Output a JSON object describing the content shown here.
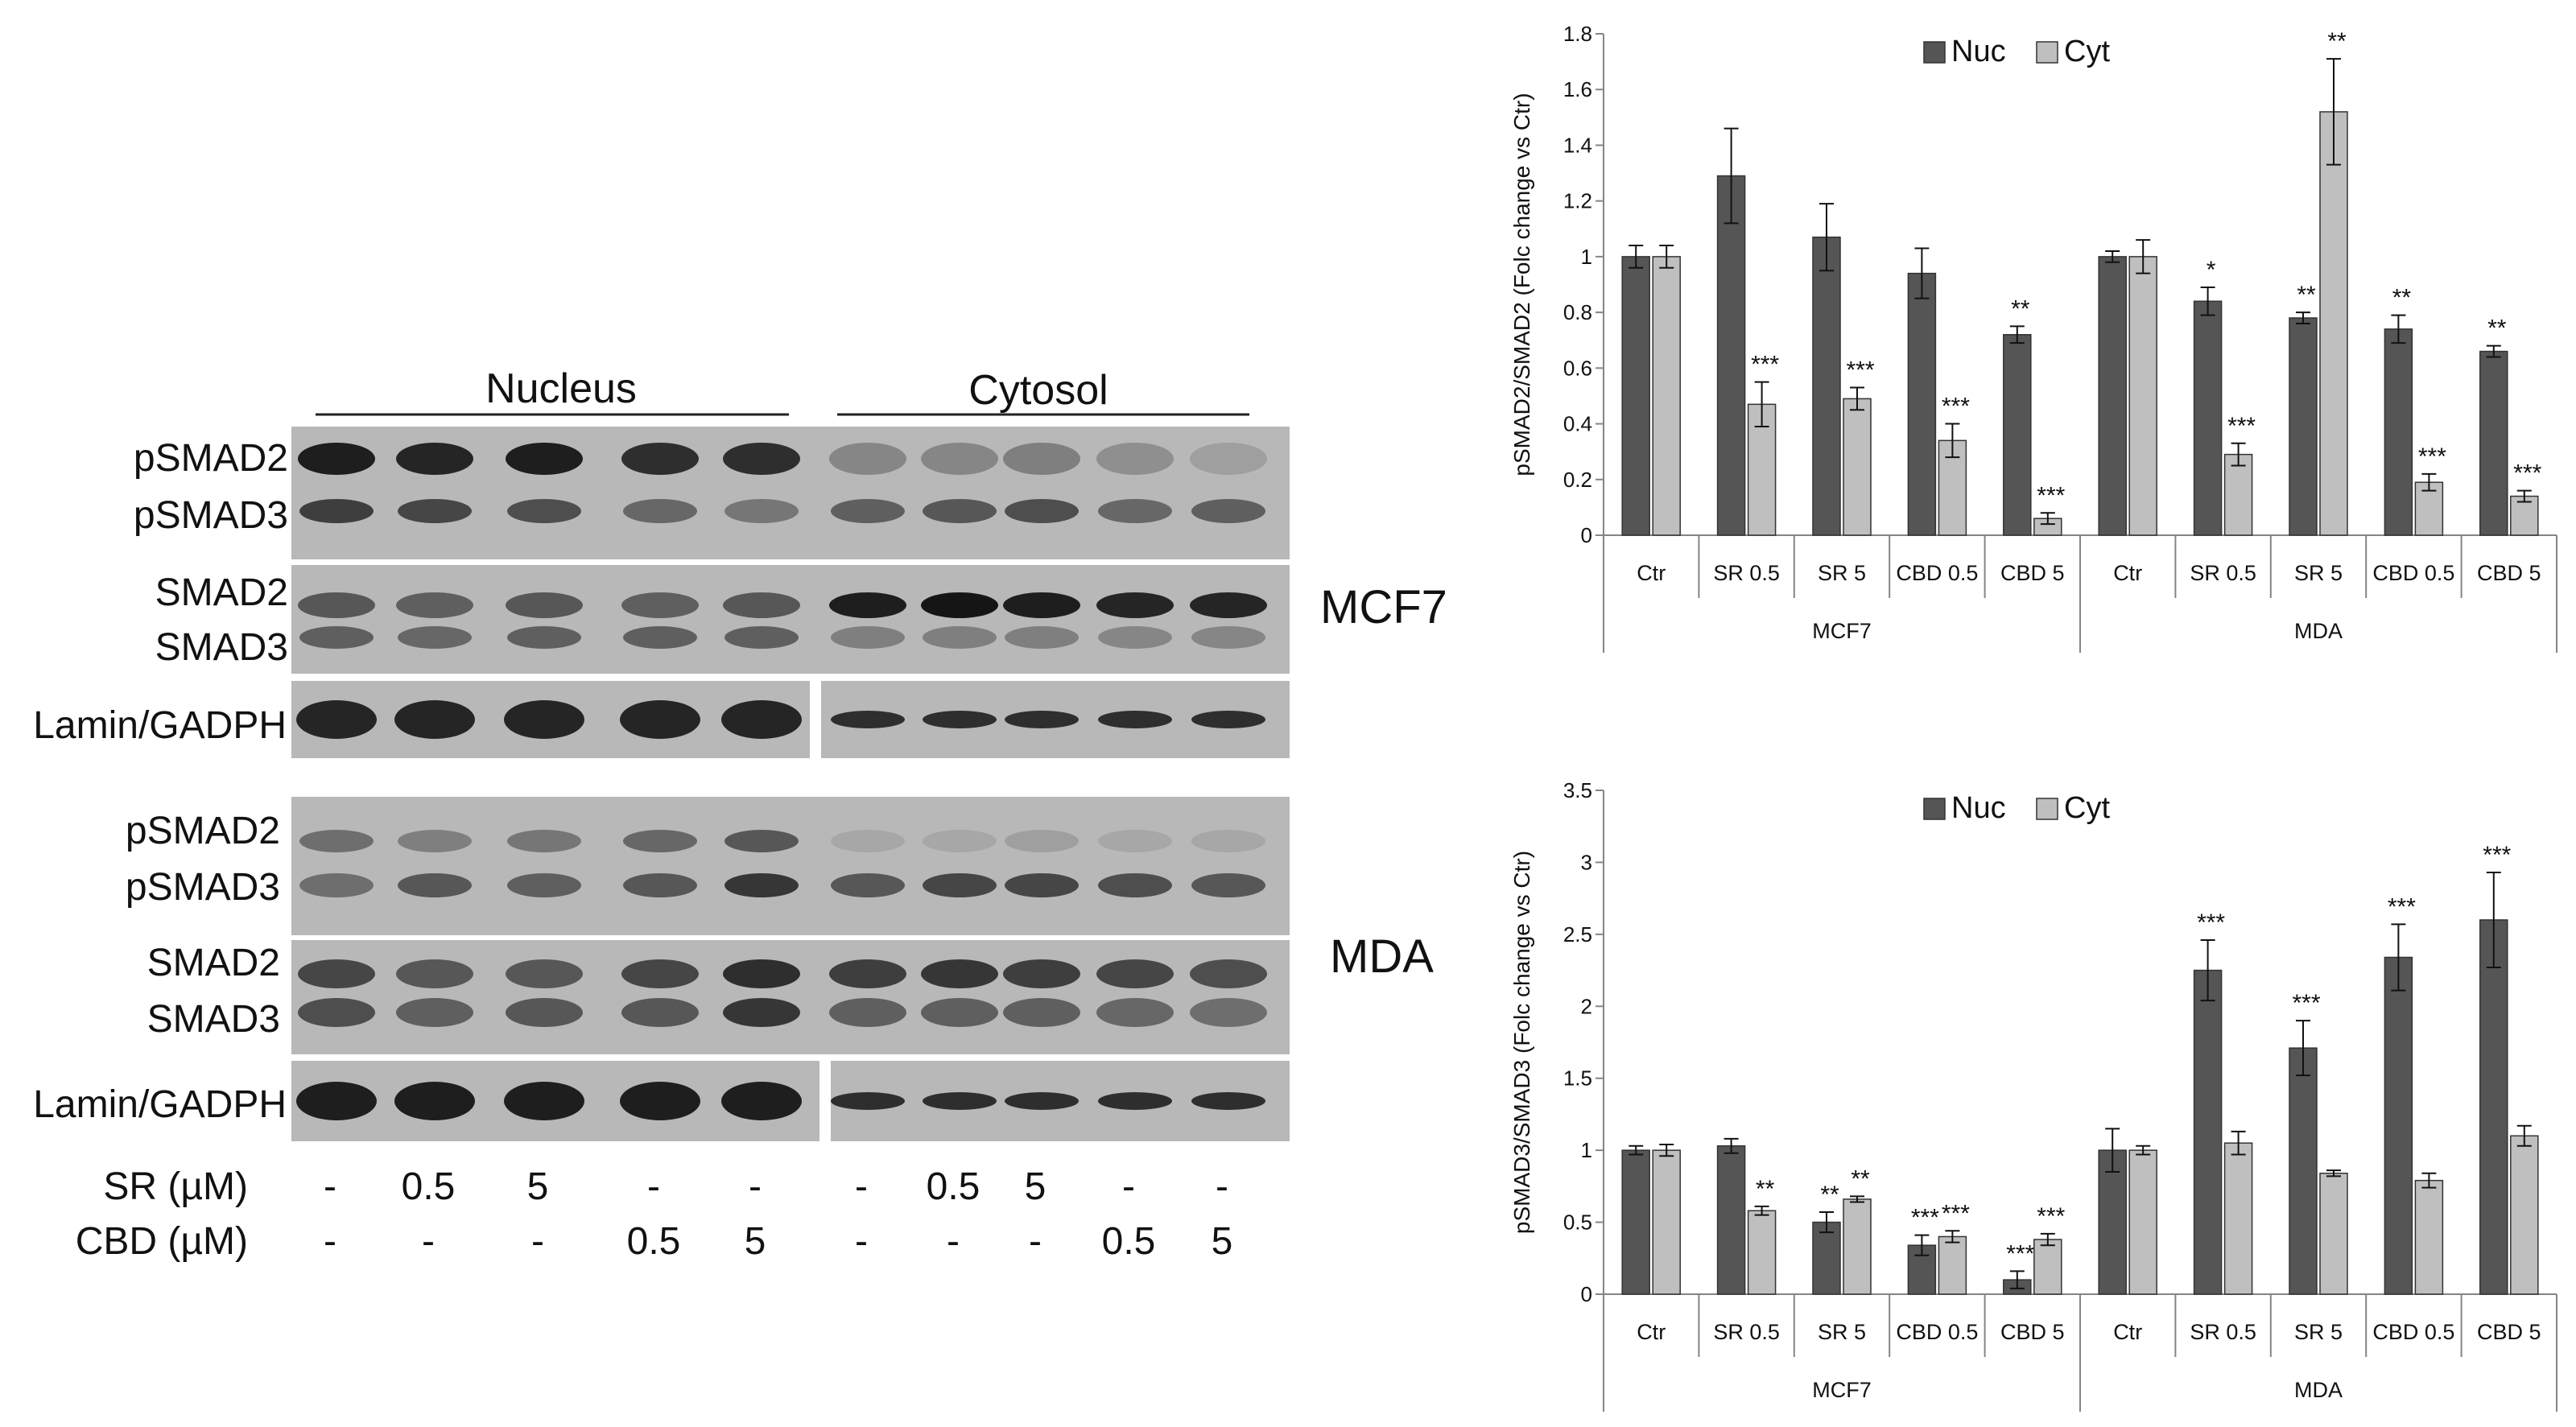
{
  "colors": {
    "nuc": "#555555",
    "cyt": "#bfbfbf",
    "axis": "#858585",
    "text": "#111111",
    "blot_bg": "#b8b8b8",
    "blot_band": "#151515"
  },
  "blot": {
    "nucleus_header": "Nucleus",
    "cytosol_header": "Cytosol",
    "cell_lines": [
      "MCF7",
      "MDA"
    ],
    "labels": {
      "psmad2": "pSMAD2",
      "psmad3": "pSMAD3",
      "smad2": "SMAD2",
      "smad3": "SMAD3",
      "loading": "Lamin/GADPH"
    },
    "treatment_rows": [
      {
        "label": "SR (µM)",
        "values": [
          "-",
          "0.5",
          "5",
          "-",
          "-",
          "-",
          "0.5",
          "5",
          "-",
          "-"
        ]
      },
      {
        "label": "CBD (µM)",
        "values": [
          "-",
          "-",
          "-",
          "0.5",
          "5",
          "-",
          "-",
          "-",
          "0.5",
          "5"
        ]
      }
    ]
  },
  "chart_data": [
    {
      "type": "bar",
      "ylabel": "pSMAD2/SMAD2 (Folc change vs Ctr)",
      "ylim": [
        0,
        1.8
      ],
      "yticks": [
        "0",
        "0.2",
        "0.4",
        "0.6",
        "0.8",
        "1",
        "1.2",
        "1.4",
        "1.6",
        "1.8"
      ],
      "legend_position": "top-center",
      "grid": false,
      "groups": [
        "MCF7",
        "MDA"
      ],
      "categories": [
        "Ctr",
        "SR 0.5",
        "SR 5",
        "CBD 0.5",
        "CBD 5",
        "Ctr",
        "SR 0.5",
        "SR 5",
        "CBD 0.5",
        "CBD 5"
      ],
      "series": [
        {
          "name": "Nuc",
          "values": [
            1.0,
            1.29,
            1.07,
            0.94,
            0.72,
            1.0,
            0.84,
            0.78,
            0.74,
            0.66
          ],
          "errors": [
            0.04,
            0.17,
            0.12,
            0.09,
            0.03,
            0.02,
            0.05,
            0.02,
            0.05,
            0.02
          ],
          "significance": [
            "",
            "",
            "",
            "",
            "**",
            "",
            "*",
            "**",
            "**",
            "**"
          ]
        },
        {
          "name": "Cyt",
          "values": [
            1.0,
            0.47,
            0.49,
            0.34,
            0.06,
            1.0,
            0.29,
            1.52,
            0.19,
            0.14
          ],
          "errors": [
            0.04,
            0.08,
            0.04,
            0.06,
            0.02,
            0.06,
            0.04,
            0.19,
            0.03,
            0.02
          ],
          "significance": [
            "",
            "***",
            "***",
            "***",
            "***",
            "",
            "***",
            "**",
            "***",
            "***"
          ]
        }
      ]
    },
    {
      "type": "bar",
      "ylabel": "pSMAD3/SMAD3 (Folc change vs Ctr)",
      "ylim": [
        0,
        3.5
      ],
      "yticks": [
        "0",
        "0.5",
        "1",
        "1.5",
        "2",
        "2.5",
        "3",
        "3.5"
      ],
      "legend_position": "top-center",
      "grid": false,
      "groups": [
        "MCF7",
        "MDA"
      ],
      "categories": [
        "Ctr",
        "SR 0.5",
        "SR 5",
        "CBD 0.5",
        "CBD 5",
        "Ctr",
        "SR 0.5",
        "SR 5",
        "CBD 0.5",
        "CBD 5"
      ],
      "series": [
        {
          "name": "Nuc",
          "values": [
            1.0,
            1.03,
            0.5,
            0.34,
            0.1,
            1.0,
            2.25,
            1.71,
            2.34,
            2.6
          ],
          "errors": [
            0.03,
            0.05,
            0.07,
            0.07,
            0.06,
            0.15,
            0.21,
            0.19,
            0.23,
            0.33
          ],
          "significance": [
            "",
            "",
            "**",
            "***",
            "***",
            "",
            "***",
            "***",
            "***",
            "***"
          ]
        },
        {
          "name": "Cyt",
          "values": [
            1.0,
            0.58,
            0.66,
            0.4,
            0.38,
            1.0,
            1.05,
            0.84,
            0.79,
            1.1
          ],
          "errors": [
            0.04,
            0.03,
            0.02,
            0.04,
            0.04,
            0.03,
            0.08,
            0.02,
            0.05,
            0.07
          ],
          "significance": [
            "",
            "**",
            "**",
            "***",
            "***",
            "",
            "",
            "",
            "",
            ""
          ]
        }
      ]
    }
  ]
}
